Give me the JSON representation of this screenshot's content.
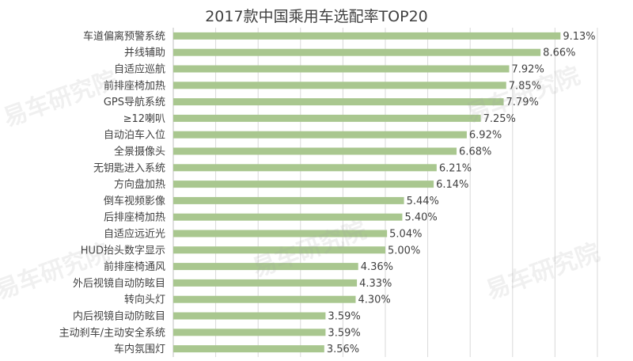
{
  "chart_data": {
    "type": "bar",
    "orientation": "horizontal",
    "title": "2017款中国乘用车选配率TOP20",
    "categories": [
      "车道偏离预警系统",
      "并线辅助",
      "自适应巡航",
      "前排座椅加热",
      "GPS导航系统",
      "≥12喇叭",
      "自动泊车入位",
      "全景摄像头",
      "无钥匙进入系统",
      "方向盘加热",
      "倒车视频影像",
      "后排座椅加热",
      "自适应远近光",
      "HUD抬头数字显示",
      "前排座椅通风",
      "外后视镜自动防眩目",
      "转向头灯",
      "内后视镜自动防眩目",
      "主动刹车/主动安全系统",
      "车内氛围灯"
    ],
    "values": [
      9.13,
      8.66,
      7.92,
      7.85,
      7.79,
      7.25,
      6.92,
      6.68,
      6.21,
      6.14,
      5.44,
      5.4,
      5.04,
      5.0,
      4.36,
      4.33,
      4.3,
      3.59,
      3.59,
      3.56
    ],
    "value_labels": [
      "9.13%",
      "8.66%",
      "7.92%",
      "7.85%",
      "7.79%",
      "7.25%",
      "6.92%",
      "6.68%",
      "6.21%",
      "6.14%",
      "5.44%",
      "5.40%",
      "5.04%",
      "5.00%",
      "4.36%",
      "4.33%",
      "4.30%",
      "3.59%",
      "3.59%",
      "3.56%"
    ],
    "unit": "%",
    "xlim": [
      0,
      10
    ],
    "grid": true,
    "bar_color": "#a9c78f"
  },
  "watermark": {
    "text": "易车研究院",
    "color": "#a0a0a0"
  }
}
